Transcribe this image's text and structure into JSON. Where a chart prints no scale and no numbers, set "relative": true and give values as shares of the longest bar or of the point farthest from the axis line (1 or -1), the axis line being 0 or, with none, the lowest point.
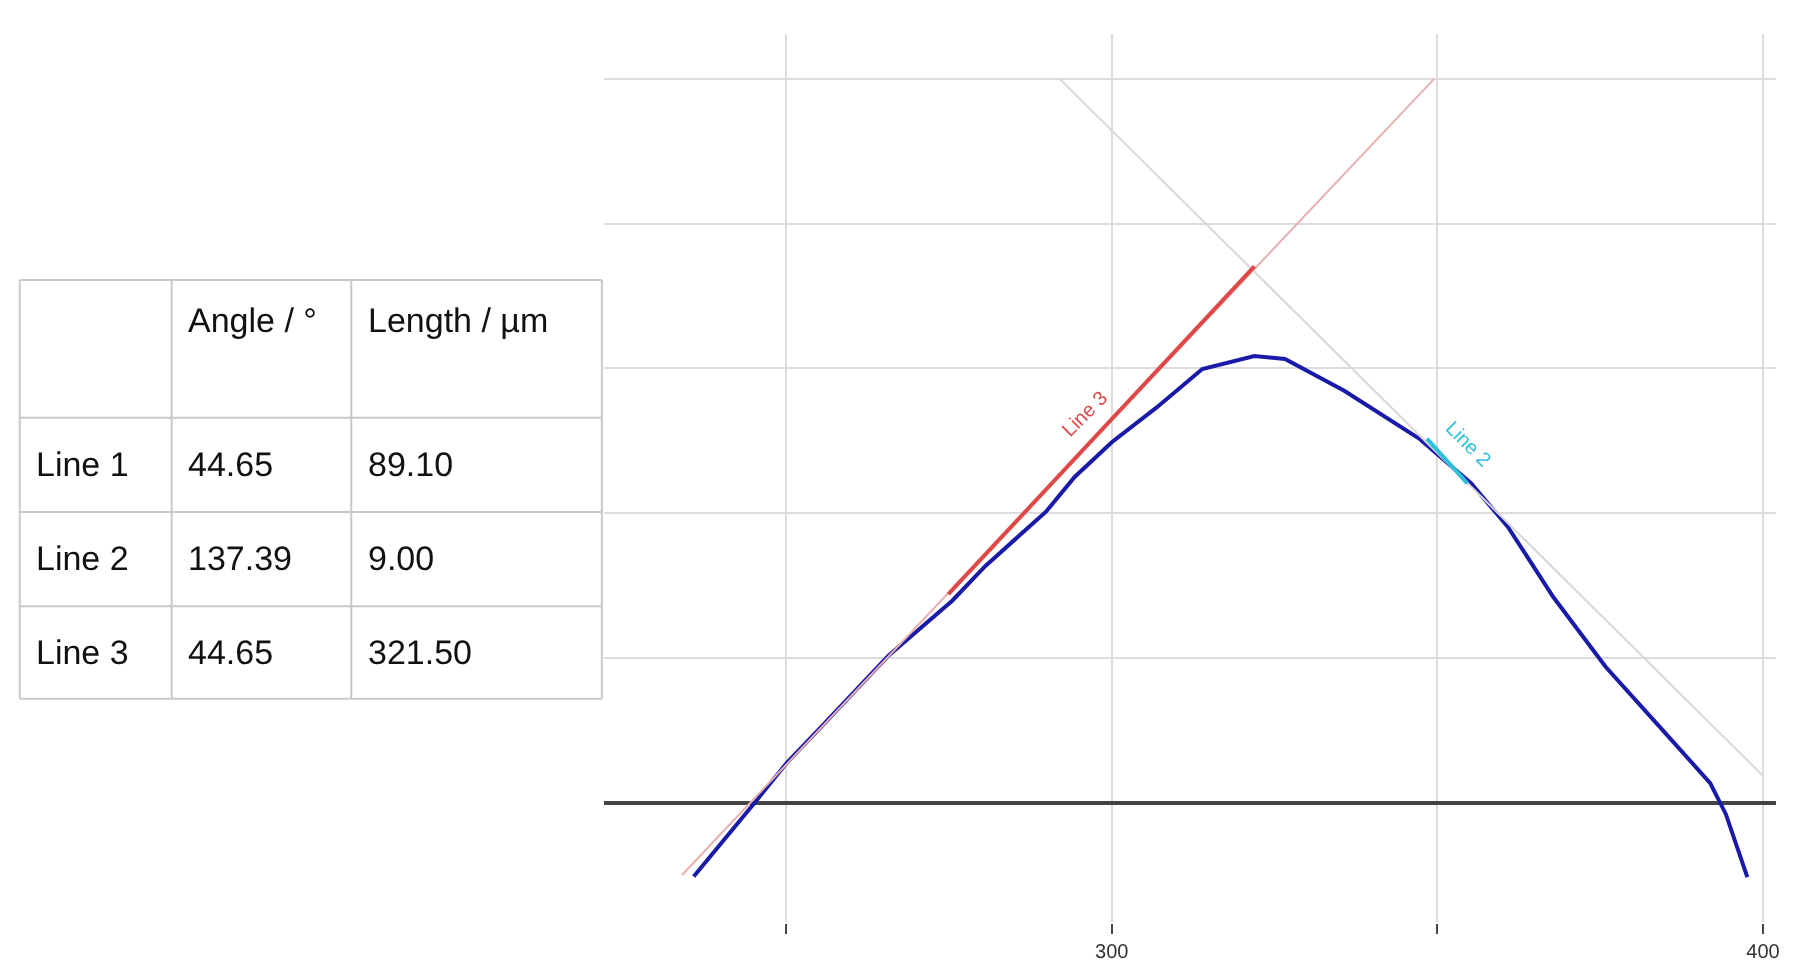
{
  "chart_data": [
    {
      "type": "other",
      "annotations": [
        "Angle / °",
        "Length / µm",
        "Line 1",
        "44.65",
        "89.10",
        "Line 2",
        "137.39",
        "9.00",
        "Line 3",
        "44.65",
        "321.50"
      ]
    },
    {
      "type": "line",
      "relative": true,
      "xlim": [
        222,
        402
      ],
      "xticks": [
        {
          "value": 250,
          "label": null
        },
        300,
        {
          "value": 350,
          "label": null
        },
        400
      ],
      "grid": true,
      "marker": "none",
      "line_style": "solid",
      "series": [
        {
          "color": "#1a1aa8",
          "x": [
            235.8,
            245.0,
            250.1,
            255.2,
            265.7,
            275.5,
            280.6,
            289.9,
            294.3,
            300,
            306.9,
            313.9,
            321.9,
            326.6,
            335.7,
            347.2,
            355.2,
            360.9,
            367.8,
            375.8,
            383.9,
            391.9,
            394.3,
            397.6
          ],
          "values": [
            -0.102,
            -0.002,
            0.055,
            0.103,
            0.203,
            0.279,
            0.327,
            0.402,
            0.45,
            0.498,
            0.546,
            0.599,
            0.617,
            0.613,
            0.569,
            0.503,
            0.441,
            0.38,
            0.284,
            0.188,
            0.107,
            0.027,
            -0.016,
            -0.103
          ]
        },
        {
          "type": "line",
          "color": "#e8b0b0",
          "x": [
            234.0,
            349.5
          ],
          "values": [
            -0.1,
            1
          ]
        },
        {
          "type": "line",
          "color": "#d8d8d8",
          "x": [
            292.0,
            400.0
          ],
          "values": [
            1,
            0.037
          ]
        },
        {
          "type": "line",
          "name": "Line 3",
          "color": "#e04848",
          "x": [
            274.9,
            321.9
          ],
          "values": [
            0.288,
            0.741
          ]
        },
        {
          "type": "line",
          "name": "Line 2",
          "color": "#30c0d8",
          "x": [
            348.4,
            354.6
          ],
          "values": [
            0.503,
            0.441
          ]
        }
      ]
    }
  ]
}
